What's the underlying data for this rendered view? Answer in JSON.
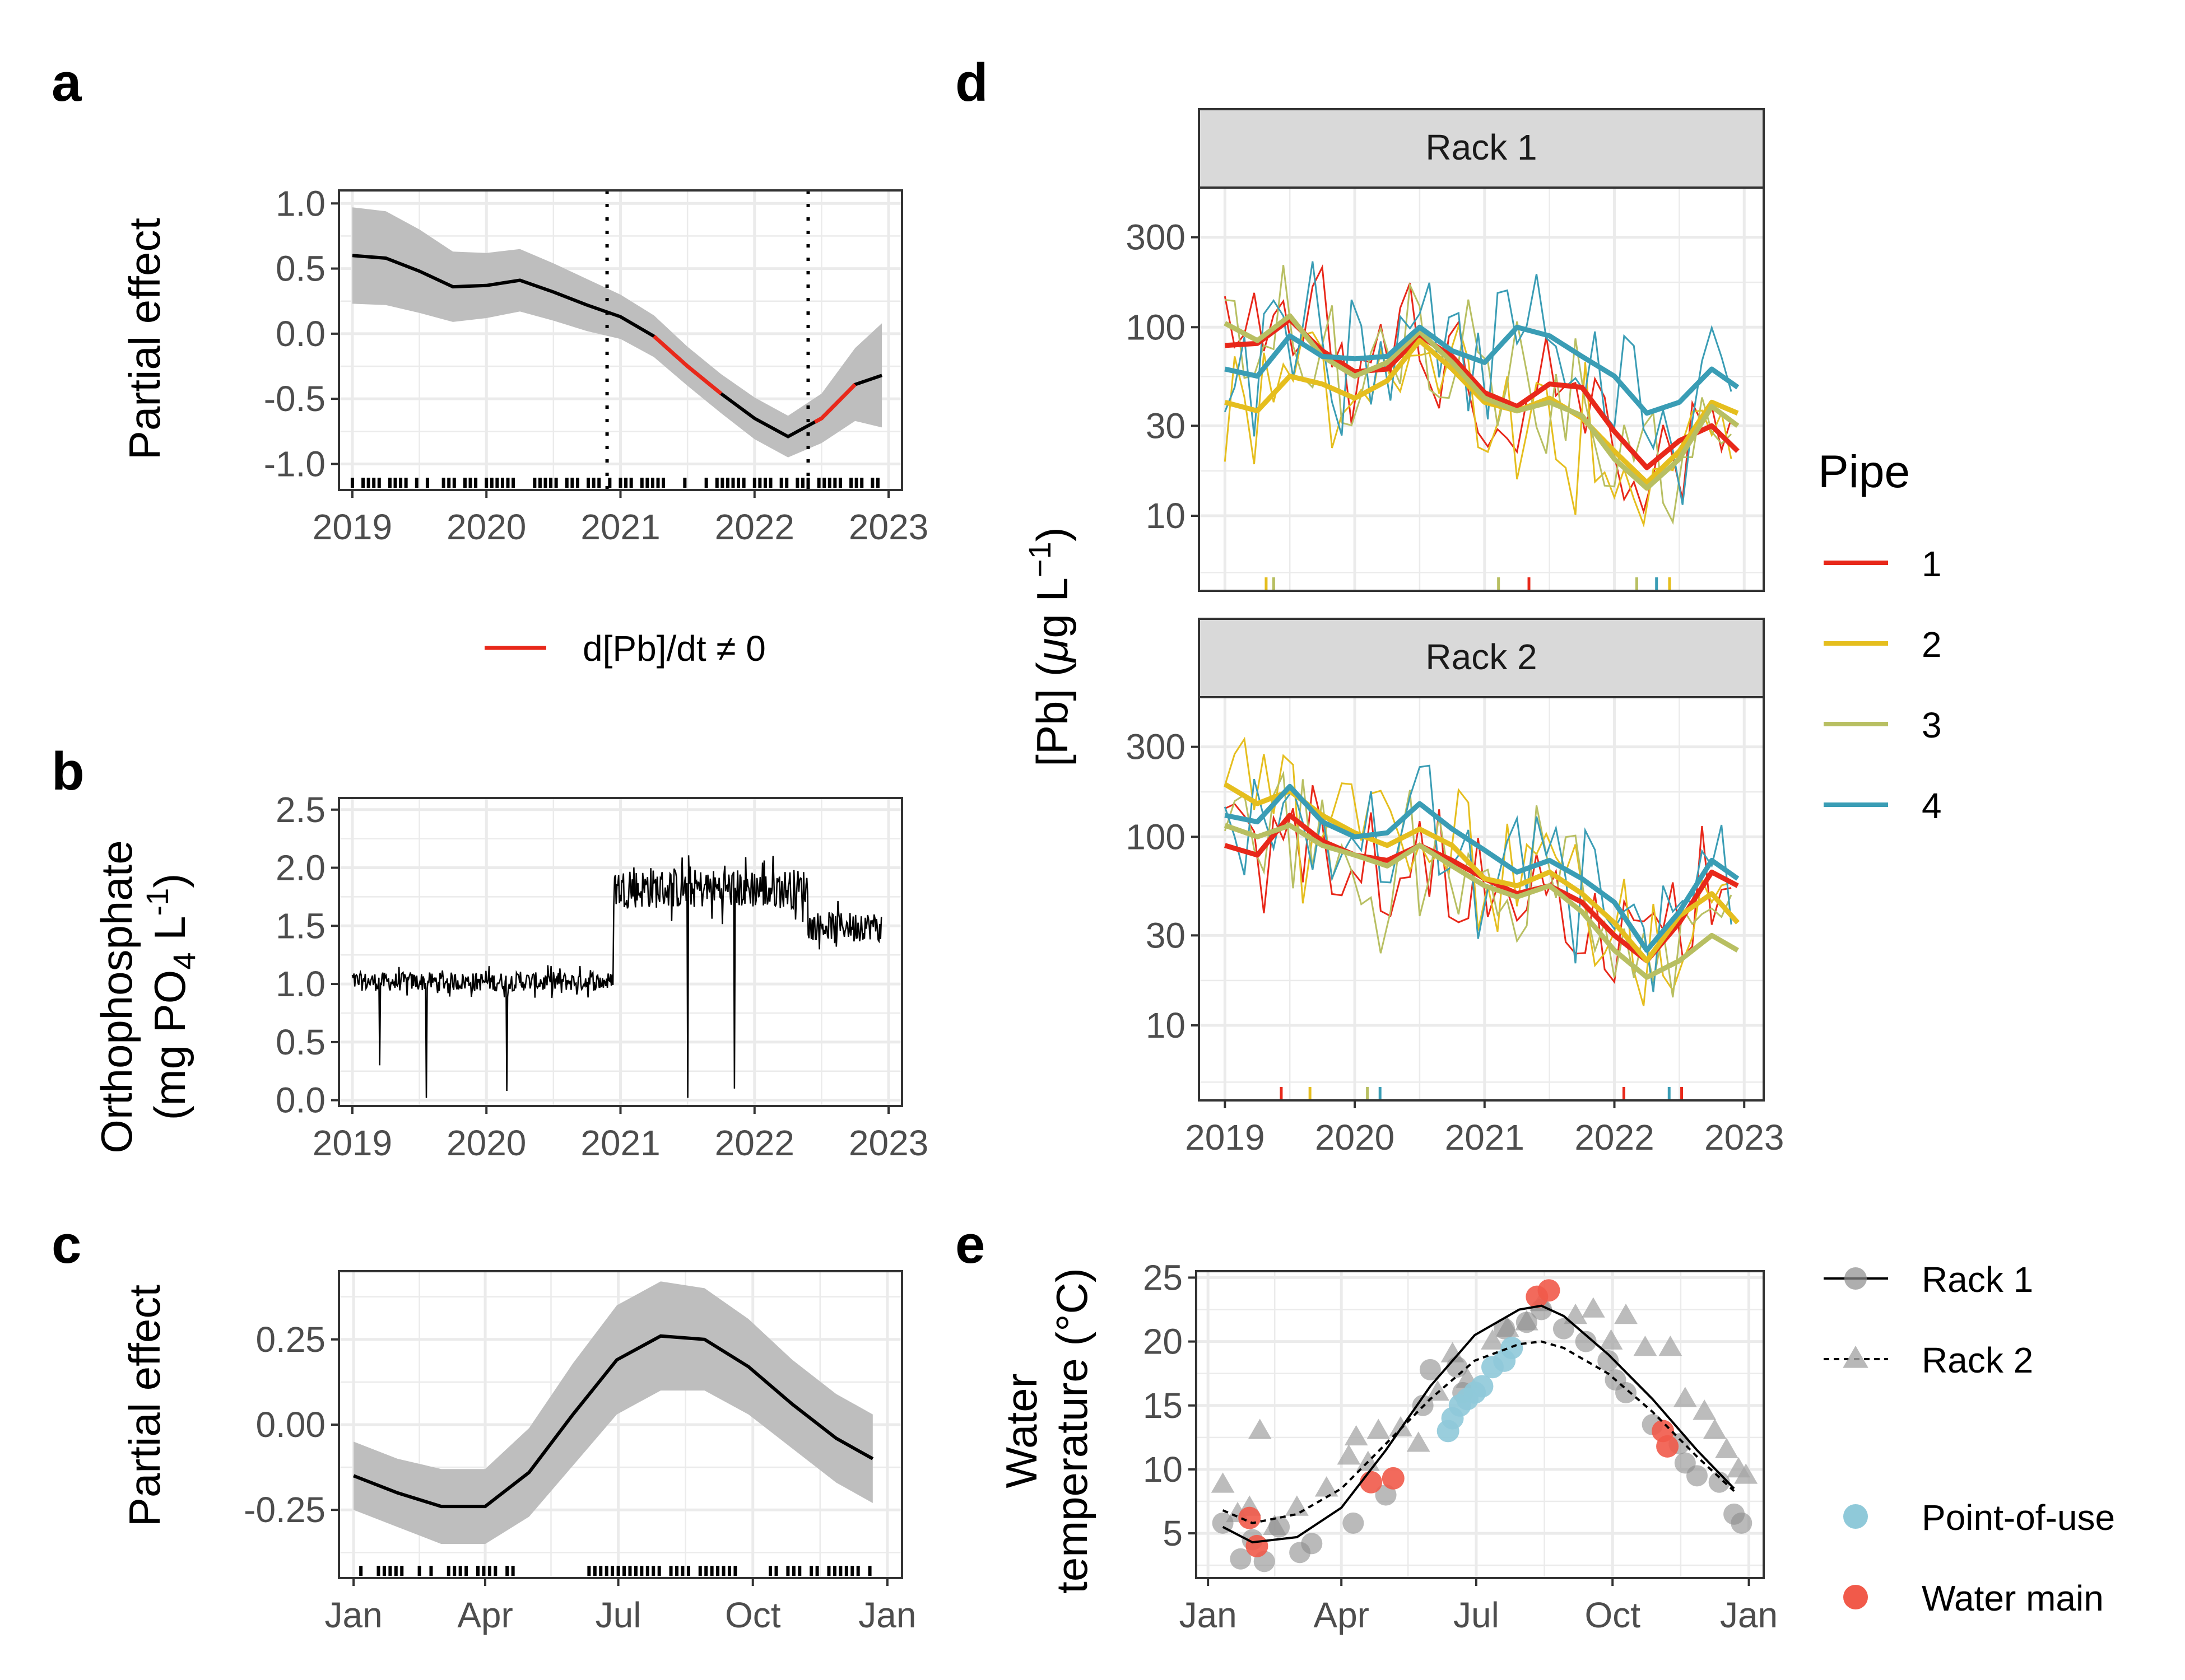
{
  "panels": {
    "a": {
      "label": "a",
      "ylabel": "Partial effect",
      "legend_label": "d[Pb]/dt ≠ 0",
      "vlines": [
        2020.9,
        2022.4
      ],
      "x": [
        2019.0,
        2019.25,
        2019.5,
        2019.75,
        2020.0,
        2020.25,
        2020.5,
        2020.75,
        2021.0,
        2021.25,
        2021.5,
        2021.75,
        2022.0,
        2022.25,
        2022.5,
        2022.75,
        2022.95
      ],
      "y": [
        0.6,
        0.58,
        0.48,
        0.36,
        0.37,
        0.41,
        0.32,
        0.22,
        0.13,
        -0.02,
        -0.25,
        -0.46,
        -0.65,
        -0.79,
        -0.65,
        -0.39,
        -0.32
      ],
      "band": [
        0.37,
        0.36,
        0.32,
        0.27,
        0.25,
        0.24,
        0.22,
        0.2,
        0.17,
        0.16,
        0.15,
        0.15,
        0.16,
        0.16,
        0.19,
        0.28,
        0.4
      ],
      "sig_segments": [
        [
          2021.25,
          2021.75
        ],
        [
          2022.45,
          2022.75
        ]
      ],
      "x_ticks": [
        2019,
        2020,
        2021,
        2022,
        2023
      ],
      "y_ticks": [
        -1.0,
        -0.5,
        0.0,
        0.5,
        1.0
      ],
      "y_tick_labels": [
        "-1.0",
        "-0.5",
        "0.0",
        "0.5",
        "1.0"
      ],
      "ylim": [
        -1.2,
        1.1
      ],
      "xlim": [
        2018.9,
        2023.1
      ]
    },
    "b": {
      "label": "b",
      "ylabel_line1": "Orthophosphate",
      "ylabel_line2": "(mg PO",
      "ylabel_sub": "4",
      "ylabel_unit": " L",
      "ylabel_sup": "-1",
      "ylabel_close": ")",
      "segments": [
        {
          "from": 2019.0,
          "to": 2020.95,
          "mean": 1.02,
          "noise": 0.08
        },
        {
          "from": 2020.95,
          "to": 2022.4,
          "mean": 1.82,
          "noise": 0.17
        },
        {
          "from": 2022.4,
          "to": 2022.95,
          "mean": 1.5,
          "noise": 0.12
        }
      ],
      "dips": [
        [
          2019.2,
          0.3
        ],
        [
          2019.55,
          0.02
        ],
        [
          2020.15,
          0.08
        ],
        [
          2021.5,
          0.02
        ],
        [
          2021.85,
          0.1
        ]
      ],
      "x_ticks": [
        2019,
        2020,
        2021,
        2022,
        2023
      ],
      "y_ticks": [
        0.0,
        0.5,
        1.0,
        1.5,
        2.0,
        2.5
      ],
      "y_tick_labels": [
        "0.0",
        "0.5",
        "1.0",
        "1.5",
        "2.0",
        "2.5"
      ],
      "ylim": [
        -0.05,
        2.6
      ],
      "xlim": [
        2018.9,
        2023.1
      ]
    },
    "c": {
      "label": "c",
      "ylabel": "Partial effect",
      "x": [
        0,
        30,
        60,
        90,
        120,
        150,
        180,
        210,
        240,
        270,
        300,
        330,
        355
      ],
      "y": [
        -0.15,
        -0.2,
        -0.24,
        -0.24,
        -0.14,
        0.03,
        0.19,
        0.26,
        0.25,
        0.17,
        0.06,
        -0.04,
        -0.1
      ],
      "band": [
        0.1,
        0.1,
        0.11,
        0.11,
        0.13,
        0.15,
        0.16,
        0.16,
        0.15,
        0.14,
        0.13,
        0.13,
        0.13
      ],
      "x_ticks": [
        0,
        90,
        181,
        273,
        365
      ],
      "x_tick_labels": [
        "Jan",
        "Apr",
        "Jul",
        "Oct",
        "Jan"
      ],
      "y_ticks": [
        -0.25,
        0.0,
        0.25
      ],
      "y_tick_labels": [
        "-0.25",
        "0.00",
        "0.25"
      ],
      "ylim": [
        -0.45,
        0.45
      ],
      "xlim": [
        -10,
        375
      ]
    },
    "d": {
      "label": "d",
      "ylabel": "[Pb] (",
      "ylabel_mu": "μ",
      "ylabel_rest": "g L",
      "ylabel_sup": "−1",
      "ylabel_close": ")",
      "strips": [
        "Rack 1",
        "Rack 2"
      ],
      "legend_title": "Pipe",
      "pipes": [
        "1",
        "2",
        "3",
        "4"
      ],
      "pipe_colors": [
        "#e8281a",
        "#e5be1e",
        "#b8bf62",
        "#3a9db5"
      ],
      "x_ticks": [
        2019,
        2020,
        2021,
        2022,
        2023
      ],
      "y_ticks": [
        10,
        30,
        100,
        300
      ],
      "y_tick_labels": [
        "10",
        "30",
        "100",
        "300"
      ],
      "ylim": [
        4,
        550
      ],
      "xlim": [
        2018.8,
        2023.15
      ],
      "smooth_x": [
        2019.0,
        2019.25,
        2019.5,
        2019.75,
        2020.0,
        2020.25,
        2020.5,
        2020.75,
        2021.0,
        2021.25,
        2021.5,
        2021.75,
        2022.0,
        2022.25,
        2022.5,
        2022.75,
        2022.95
      ],
      "rack1": [
        [
          80,
          82,
          110,
          75,
          58,
          60,
          90,
          70,
          45,
          38,
          50,
          48,
          28,
          18,
          25,
          30,
          22
        ],
        [
          40,
          36,
          55,
          50,
          42,
          52,
          85,
          60,
          40,
          36,
          42,
          33,
          22,
          15,
          22,
          40,
          35
        ],
        [
          105,
          85,
          115,
          70,
          55,
          65,
          95,
          65,
          42,
          36,
          40,
          34,
          20,
          14,
          20,
          38,
          30
        ],
        [
          60,
          55,
          90,
          70,
          68,
          70,
          100,
          75,
          65,
          100,
          90,
          70,
          55,
          35,
          40,
          60,
          48
        ]
      ],
      "rack2": [
        [
          90,
          80,
          130,
          95,
          80,
          75,
          90,
          75,
          60,
          50,
          55,
          45,
          30,
          22,
          35,
          65,
          55
        ],
        [
          190,
          150,
          175,
          130,
          105,
          90,
          110,
          90,
          60,
          55,
          65,
          50,
          35,
          22,
          38,
          50,
          35
        ],
        [
          115,
          100,
          115,
          90,
          80,
          70,
          90,
          70,
          55,
          48,
          55,
          40,
          25,
          18,
          22,
          30,
          25
        ],
        [
          130,
          120,
          185,
          120,
          100,
          105,
          150,
          110,
          85,
          65,
          75,
          60,
          45,
          25,
          40,
          75,
          60
        ]
      ]
    },
    "e": {
      "label": "e",
      "ylabel_line1": "Water",
      "ylabel_line2": "temperature (°C)",
      "legend_rack1": "Rack 1",
      "legend_rack2": "Rack 2",
      "legend_pou": "Point-of-use",
      "legend_main": "Water main",
      "color_pou": "#8fc9d9",
      "color_main": "#f15a4a",
      "x_ticks": [
        0,
        90,
        181,
        273,
        365
      ],
      "x_tick_labels": [
        "Jan",
        "Apr",
        "Jul",
        "Oct",
        "Jan"
      ],
      "y_ticks": [
        5,
        10,
        15,
        20,
        25
      ],
      "y_tick_labels": [
        "5",
        "10",
        "15",
        "20",
        "25"
      ],
      "ylim": [
        1.5,
        25.5
      ],
      "xlim": [
        -8,
        375
      ],
      "rack1_curve": {
        "x": [
          10,
          30,
          60,
          90,
          120,
          150,
          180,
          210,
          225,
          240,
          270,
          300,
          330,
          355
        ],
        "y": [
          5.5,
          4.3,
          4.7,
          7.0,
          11.5,
          16.5,
          20.5,
          22.5,
          22.8,
          22.0,
          19.0,
          15.5,
          11.5,
          8.5
        ]
      },
      "rack2_curve": {
        "x": [
          10,
          30,
          60,
          90,
          120,
          150,
          180,
          210,
          225,
          240,
          270,
          300,
          330,
          355
        ],
        "y": [
          6.8,
          5.8,
          6.5,
          8.5,
          12.0,
          15.5,
          18.5,
          19.8,
          20.0,
          19.5,
          17.5,
          14.5,
          11.0,
          8.3
        ]
      },
      "rack1_points": [
        [
          10,
          5.8
        ],
        [
          22,
          3.0
        ],
        [
          30,
          4.5
        ],
        [
          38,
          2.8
        ],
        [
          48,
          5.5
        ],
        [
          62,
          3.5
        ],
        [
          70,
          4.2
        ],
        [
          98,
          5.8
        ],
        [
          120,
          8.0
        ],
        [
          145,
          15.0
        ],
        [
          150,
          17.8
        ],
        [
          168,
          18.0
        ],
        [
          172,
          16.0
        ],
        [
          200,
          21.0
        ],
        [
          215,
          21.5
        ],
        [
          225,
          22.5
        ],
        [
          240,
          21.0
        ],
        [
          255,
          20.0
        ],
        [
          270,
          18.5
        ],
        [
          275,
          17.0
        ],
        [
          282,
          16.0
        ],
        [
          300,
          13.5
        ],
        [
          318,
          12.0
        ],
        [
          322,
          10.5
        ],
        [
          330,
          9.5
        ],
        [
          345,
          9.0
        ],
        [
          355,
          6.5
        ],
        [
          360,
          5.8
        ]
      ],
      "rack2_points": [
        [
          10,
          8.8
        ],
        [
          20,
          6.5
        ],
        [
          28,
          7.0
        ],
        [
          35,
          13.0
        ],
        [
          45,
          5.5
        ],
        [
          60,
          7.0
        ],
        [
          80,
          8.5
        ],
        [
          95,
          11.0
        ],
        [
          100,
          12.5
        ],
        [
          108,
          10.5
        ],
        [
          115,
          13.0
        ],
        [
          130,
          13.2
        ],
        [
          142,
          12.0
        ],
        [
          155,
          16.0
        ],
        [
          165,
          19.0
        ],
        [
          175,
          17.0
        ],
        [
          192,
          20.0
        ],
        [
          202,
          21.0
        ],
        [
          215,
          21.5
        ],
        [
          225,
          23.0
        ],
        [
          248,
          22.0
        ],
        [
          260,
          22.5
        ],
        [
          272,
          20.0
        ],
        [
          282,
          22.0
        ],
        [
          295,
          19.5
        ],
        [
          312,
          19.5
        ],
        [
          322,
          15.5
        ],
        [
          335,
          14.5
        ],
        [
          342,
          13.0
        ],
        [
          350,
          11.5
        ],
        [
          358,
          10.0
        ],
        [
          363,
          9.5
        ]
      ],
      "pou_points": [
        [
          162,
          13.0
        ],
        [
          165,
          14.0
        ],
        [
          170,
          15.0
        ],
        [
          175,
          15.5
        ],
        [
          180,
          16.0
        ],
        [
          185,
          16.5
        ],
        [
          192,
          18.0
        ],
        [
          200,
          18.5
        ],
        [
          205,
          19.5
        ]
      ],
      "main_points": [
        [
          28,
          6.2
        ],
        [
          33,
          4.0
        ],
        [
          110,
          9.0
        ],
        [
          125,
          9.3
        ],
        [
          222,
          23.5
        ],
        [
          230,
          24.0
        ],
        [
          307,
          13.0
        ],
        [
          310,
          11.8
        ]
      ]
    }
  }
}
